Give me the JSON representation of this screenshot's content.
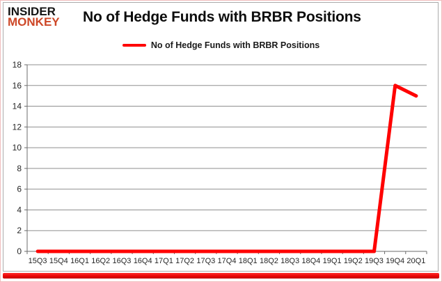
{
  "branding": {
    "logo_line1": "INSIDER",
    "logo_line2": "MONKEY",
    "logo_line1_color": "#141414",
    "logo_line2_color": "#cd4727"
  },
  "header": {
    "title": "No of Hedge Funds with BRBR Positions"
  },
  "legend": {
    "label": "No of Hedge Funds with BRBR Positions",
    "swatch_color": "#ff0000"
  },
  "chart_data": {
    "type": "line",
    "title": "No of Hedge Funds with BRBR Positions",
    "categories": [
      "15Q3",
      "15Q4",
      "16Q1",
      "16Q2",
      "16Q3",
      "16Q4",
      "17Q1",
      "17Q2",
      "17Q3",
      "17Q4",
      "18Q1",
      "18Q2",
      "18Q3",
      "18Q4",
      "19Q1",
      "19Q2",
      "19Q3",
      "19Q4",
      "20Q1"
    ],
    "series": [
      {
        "name": "No of Hedge Funds with BRBR Positions",
        "color": "#ff0000",
        "values": [
          0,
          0,
          0,
          0,
          0,
          0,
          0,
          0,
          0,
          0,
          0,
          0,
          0,
          0,
          0,
          0,
          0,
          16,
          15
        ]
      }
    ],
    "xlabel": "",
    "ylabel": "",
    "ylim": [
      0,
      18
    ],
    "ytick_step": 2,
    "grid": true,
    "legend_position": "top-center"
  },
  "colors": {
    "line": "#ff0000",
    "gridline": "#8f8f8f",
    "axis": "#6b6b6b",
    "tick_label": "#262626",
    "frame_border": "#f0bcbc",
    "card_border": "#ababab",
    "bottom_bar": "#ea0505",
    "background": "#ffffff"
  }
}
